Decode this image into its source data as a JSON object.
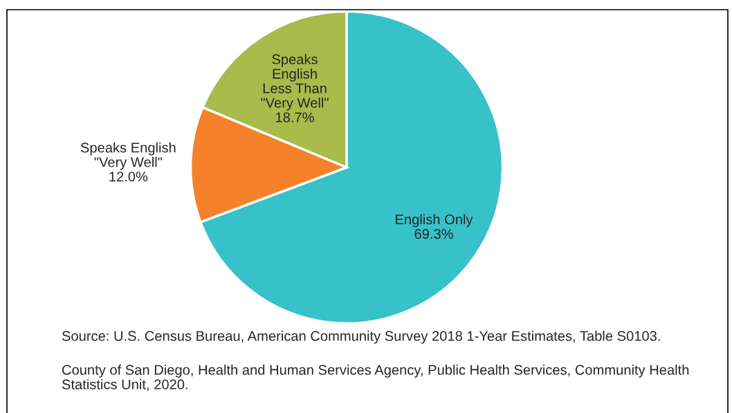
{
  "chart_data": {
    "type": "pie",
    "categories": [
      "English Only",
      "Speaks English\n\"Very Well\"",
      "Speaks\nEnglish\nLess Than\n\"Very Well\""
    ],
    "values": [
      69.3,
      12.0,
      18.7
    ],
    "value_labels": [
      "69.3%",
      "12.0%",
      "18.7%"
    ],
    "colors": [
      "#37c1c8",
      "#f5822a",
      "#a8bb4b"
    ],
    "annotations": [
      "Source: U.S. Census Bureau, American Community Survey 2018 1-Year Estimates, Table S0103.",
      "County of San Diego, Health and Human Services Agency, Public Health Services, Community Health Statistics Unit, 2020."
    ]
  }
}
